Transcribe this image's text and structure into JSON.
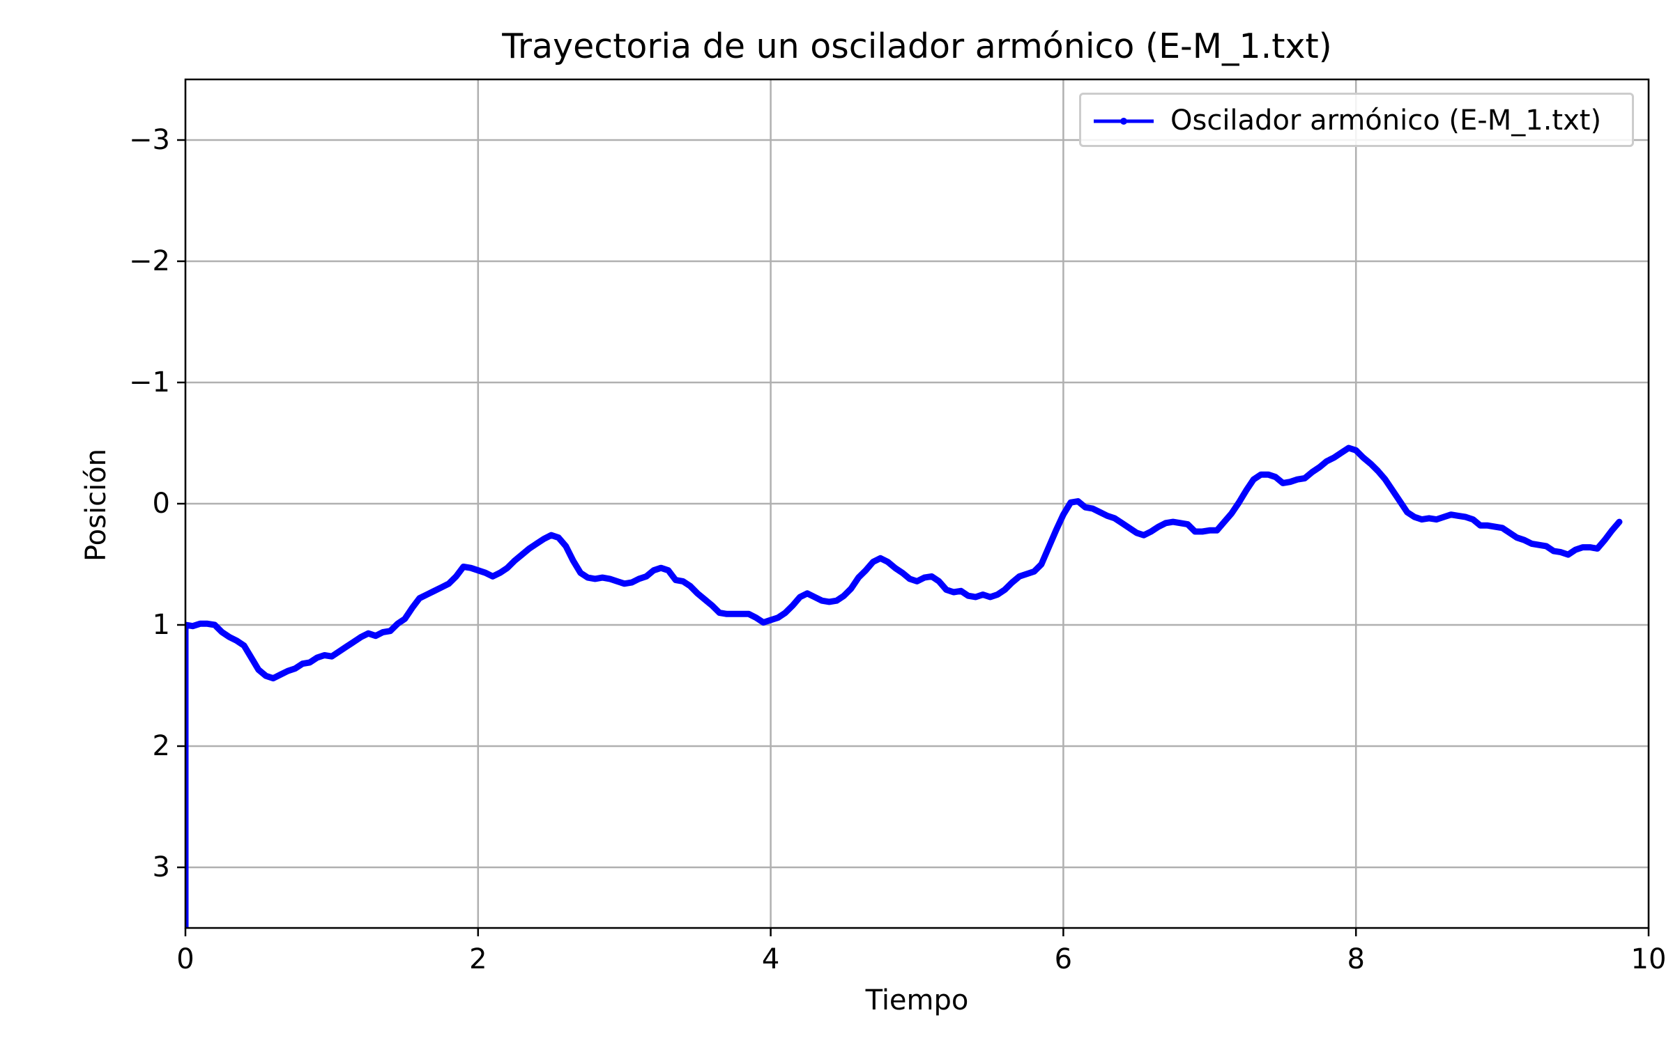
{
  "chart_data": {
    "type": "line",
    "title": "Trayectoria de un oscilador armónico (E-M_1.txt)",
    "xlabel": "Tiempo",
    "ylabel": "Posición",
    "xlim": [
      0,
      10
    ],
    "ylim": [
      3.5,
      -3.5
    ],
    "y_inverted": true,
    "grid": true,
    "legend_position": "top-right",
    "x_ticks": [
      {
        "value": 0,
        "label": "0"
      },
      {
        "value": 2,
        "label": "2"
      },
      {
        "value": 4,
        "label": "4"
      },
      {
        "value": 6,
        "label": "6"
      },
      {
        "value": 8,
        "label": "8"
      },
      {
        "value": 10,
        "label": "10"
      }
    ],
    "y_ticks": [
      {
        "value": -3,
        "label": "−3"
      },
      {
        "value": -2,
        "label": "−2"
      },
      {
        "value": -1,
        "label": "−1"
      },
      {
        "value": 0,
        "label": "0"
      },
      {
        "value": 1,
        "label": "1"
      },
      {
        "value": 2,
        "label": "2"
      },
      {
        "value": 3,
        "label": "3"
      }
    ],
    "series": [
      {
        "name": "Oscilador armónico (E-M_1.txt)",
        "color": "#0000ff",
        "marker": "point",
        "points": [
          [
            0.0,
            3.5
          ],
          [
            0.0,
            1.0
          ],
          [
            0.05,
            1.01
          ],
          [
            0.1,
            0.99
          ],
          [
            0.15,
            0.99
          ],
          [
            0.2,
            1.0
          ],
          [
            0.25,
            1.06
          ],
          [
            0.3,
            1.1
          ],
          [
            0.35,
            1.13
          ],
          [
            0.4,
            1.17
          ],
          [
            0.45,
            1.27
          ],
          [
            0.5,
            1.37
          ],
          [
            0.55,
            1.42
          ],
          [
            0.6,
            1.44
          ],
          [
            0.65,
            1.41
          ],
          [
            0.7,
            1.38
          ],
          [
            0.75,
            1.36
          ],
          [
            0.8,
            1.32
          ],
          [
            0.85,
            1.31
          ],
          [
            0.9,
            1.27
          ],
          [
            0.95,
            1.25
          ],
          [
            1.0,
            1.26
          ],
          [
            1.05,
            1.22
          ],
          [
            1.1,
            1.18
          ],
          [
            1.15,
            1.14
          ],
          [
            1.2,
            1.1
          ],
          [
            1.25,
            1.07
          ],
          [
            1.3,
            1.09
          ],
          [
            1.35,
            1.06
          ],
          [
            1.4,
            1.05
          ],
          [
            1.45,
            0.99
          ],
          [
            1.5,
            0.95
          ],
          [
            1.55,
            0.86
          ],
          [
            1.6,
            0.78
          ],
          [
            1.65,
            0.75
          ],
          [
            1.7,
            0.72
          ],
          [
            1.75,
            0.69
          ],
          [
            1.8,
            0.66
          ],
          [
            1.85,
            0.6
          ],
          [
            1.9,
            0.52
          ],
          [
            1.95,
            0.53
          ],
          [
            2.0,
            0.55
          ],
          [
            2.05,
            0.57
          ],
          [
            2.1,
            0.6
          ],
          [
            2.15,
            0.57
          ],
          [
            2.2,
            0.53
          ],
          [
            2.25,
            0.47
          ],
          [
            2.3,
            0.42
          ],
          [
            2.35,
            0.37
          ],
          [
            2.4,
            0.33
          ],
          [
            2.45,
            0.29
          ],
          [
            2.5,
            0.26
          ],
          [
            2.55,
            0.28
          ],
          [
            2.6,
            0.35
          ],
          [
            2.65,
            0.47
          ],
          [
            2.7,
            0.57
          ],
          [
            2.75,
            0.61
          ],
          [
            2.8,
            0.62
          ],
          [
            2.85,
            0.61
          ],
          [
            2.9,
            0.62
          ],
          [
            2.95,
            0.64
          ],
          [
            3.0,
            0.66
          ],
          [
            3.05,
            0.65
          ],
          [
            3.1,
            0.62
          ],
          [
            3.15,
            0.6
          ],
          [
            3.2,
            0.55
          ],
          [
            3.25,
            0.53
          ],
          [
            3.3,
            0.55
          ],
          [
            3.35,
            0.63
          ],
          [
            3.4,
            0.64
          ],
          [
            3.45,
            0.68
          ],
          [
            3.5,
            0.74
          ],
          [
            3.55,
            0.79
          ],
          [
            3.6,
            0.84
          ],
          [
            3.65,
            0.9
          ],
          [
            3.7,
            0.91
          ],
          [
            3.75,
            0.91
          ],
          [
            3.8,
            0.91
          ],
          [
            3.85,
            0.91
          ],
          [
            3.9,
            0.94
          ],
          [
            3.95,
            0.98
          ],
          [
            4.0,
            0.96
          ],
          [
            4.05,
            0.94
          ],
          [
            4.1,
            0.9
          ],
          [
            4.15,
            0.84
          ],
          [
            4.2,
            0.77
          ],
          [
            4.25,
            0.74
          ],
          [
            4.3,
            0.77
          ],
          [
            4.35,
            0.8
          ],
          [
            4.4,
            0.81
          ],
          [
            4.45,
            0.8
          ],
          [
            4.5,
            0.76
          ],
          [
            4.55,
            0.7
          ],
          [
            4.6,
            0.61
          ],
          [
            4.65,
            0.55
          ],
          [
            4.7,
            0.48
          ],
          [
            4.75,
            0.45
          ],
          [
            4.8,
            0.48
          ],
          [
            4.85,
            0.53
          ],
          [
            4.9,
            0.57
          ],
          [
            4.95,
            0.62
          ],
          [
            5.0,
            0.64
          ],
          [
            5.05,
            0.61
          ],
          [
            5.1,
            0.6
          ],
          [
            5.15,
            0.64
          ],
          [
            5.2,
            0.71
          ],
          [
            5.25,
            0.73
          ],
          [
            5.3,
            0.72
          ],
          [
            5.35,
            0.76
          ],
          [
            5.4,
            0.77
          ],
          [
            5.45,
            0.75
          ],
          [
            5.5,
            0.77
          ],
          [
            5.55,
            0.75
          ],
          [
            5.6,
            0.71
          ],
          [
            5.65,
            0.65
          ],
          [
            5.7,
            0.6
          ],
          [
            5.75,
            0.58
          ],
          [
            5.8,
            0.56
          ],
          [
            5.85,
            0.5
          ],
          [
            5.9,
            0.36
          ],
          [
            5.95,
            0.22
          ],
          [
            6.0,
            0.09
          ],
          [
            6.05,
            -0.01
          ],
          [
            6.1,
            -0.02
          ],
          [
            6.15,
            0.03
          ],
          [
            6.2,
            0.04
          ],
          [
            6.25,
            0.07
          ],
          [
            6.3,
            0.1
          ],
          [
            6.35,
            0.12
          ],
          [
            6.4,
            0.16
          ],
          [
            6.45,
            0.2
          ],
          [
            6.5,
            0.24
          ],
          [
            6.55,
            0.26
          ],
          [
            6.6,
            0.23
          ],
          [
            6.65,
            0.19
          ],
          [
            6.7,
            0.16
          ],
          [
            6.75,
            0.15
          ],
          [
            6.8,
            0.16
          ],
          [
            6.85,
            0.17
          ],
          [
            6.9,
            0.23
          ],
          [
            6.95,
            0.23
          ],
          [
            7.0,
            0.22
          ],
          [
            7.05,
            0.22
          ],
          [
            7.1,
            0.15
          ],
          [
            7.15,
            0.08
          ],
          [
            7.2,
            -0.01
          ],
          [
            7.25,
            -0.11
          ],
          [
            7.3,
            -0.2
          ],
          [
            7.35,
            -0.24
          ],
          [
            7.4,
            -0.24
          ],
          [
            7.45,
            -0.22
          ],
          [
            7.5,
            -0.17
          ],
          [
            7.55,
            -0.18
          ],
          [
            7.6,
            -0.2
          ],
          [
            7.65,
            -0.21
          ],
          [
            7.7,
            -0.26
          ],
          [
            7.75,
            -0.3
          ],
          [
            7.8,
            -0.35
          ],
          [
            7.85,
            -0.38
          ],
          [
            7.9,
            -0.42
          ],
          [
            7.95,
            -0.46
          ],
          [
            8.0,
            -0.44
          ],
          [
            8.05,
            -0.38
          ],
          [
            8.1,
            -0.33
          ],
          [
            8.15,
            -0.27
          ],
          [
            8.2,
            -0.2
          ],
          [
            8.25,
            -0.11
          ],
          [
            8.3,
            -0.02
          ],
          [
            8.35,
            0.07
          ],
          [
            8.4,
            0.11
          ],
          [
            8.45,
            0.13
          ],
          [
            8.5,
            0.12
          ],
          [
            8.55,
            0.13
          ],
          [
            8.6,
            0.11
          ],
          [
            8.65,
            0.09
          ],
          [
            8.7,
            0.1
          ],
          [
            8.75,
            0.11
          ],
          [
            8.8,
            0.13
          ],
          [
            8.85,
            0.18
          ],
          [
            8.9,
            0.18
          ],
          [
            8.95,
            0.19
          ],
          [
            9.0,
            0.2
          ],
          [
            9.05,
            0.24
          ],
          [
            9.1,
            0.28
          ],
          [
            9.15,
            0.3
          ],
          [
            9.2,
            0.33
          ],
          [
            9.25,
            0.34
          ],
          [
            9.3,
            0.35
          ],
          [
            9.35,
            0.39
          ],
          [
            9.4,
            0.4
          ],
          [
            9.45,
            0.42
          ],
          [
            9.5,
            0.38
          ],
          [
            9.55,
            0.36
          ],
          [
            9.6,
            0.36
          ],
          [
            9.65,
            0.37
          ],
          [
            9.7,
            0.3
          ],
          [
            9.75,
            0.22
          ],
          [
            9.8,
            0.15
          ]
        ]
      }
    ]
  }
}
